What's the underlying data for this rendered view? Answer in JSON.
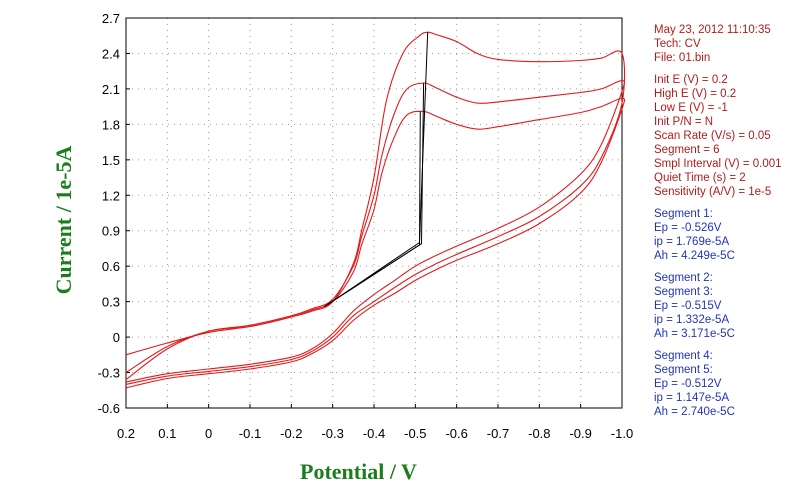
{
  "chart_data": {
    "type": "line",
    "xlabel": "Potential / V",
    "ylabel": "Current / 1e-5A",
    "xlim": [
      0.2,
      -1.0
    ],
    "ylim": [
      -0.6,
      2.7
    ],
    "x_axis_reversed": true,
    "grid": true,
    "x_ticks": [
      "0.2",
      "0.1",
      "0",
      "-0.1",
      "-0.2",
      "-0.3",
      "-0.4",
      "-0.5",
      "-0.6",
      "-0.7",
      "-0.8",
      "-0.9",
      "-1.0"
    ],
    "y_ticks": [
      "2.7",
      "2.4",
      "2.1",
      "1.8",
      "1.5",
      "1.2",
      "0.9",
      "0.6",
      "0.3",
      "0",
      "-0.3",
      "-0.6"
    ],
    "series": [
      {
        "color": "#e31a1a",
        "points": [
          [
            0.2,
            -0.4
          ],
          [
            0.1,
            -0.33
          ],
          [
            0.0,
            -0.29
          ],
          [
            -0.1,
            -0.25
          ],
          [
            -0.2,
            -0.19
          ],
          [
            -0.25,
            -0.12
          ],
          [
            -0.3,
            0.0
          ],
          [
            -0.35,
            0.18
          ],
          [
            -0.4,
            0.3
          ],
          [
            -0.45,
            0.42
          ],
          [
            -0.5,
            0.53
          ],
          [
            -0.55,
            0.62
          ],
          [
            -0.6,
            0.7
          ],
          [
            -0.7,
            0.85
          ],
          [
            -0.8,
            1.02
          ],
          [
            -0.9,
            1.28
          ],
          [
            -0.95,
            1.52
          ],
          [
            -1.0,
            1.98
          ],
          [
            -1.0,
            2.4
          ],
          [
            -0.95,
            2.36
          ],
          [
            -0.9,
            2.34
          ],
          [
            -0.8,
            2.33
          ],
          [
            -0.7,
            2.35
          ],
          [
            -0.65,
            2.4
          ],
          [
            -0.6,
            2.5
          ],
          [
            -0.55,
            2.56
          ],
          [
            -0.53,
            2.58
          ],
          [
            -0.51,
            2.55
          ],
          [
            -0.47,
            2.4
          ],
          [
            -0.43,
            2.0
          ],
          [
            -0.4,
            1.35
          ],
          [
            -0.37,
            0.9
          ],
          [
            -0.35,
            0.62
          ],
          [
            -0.3,
            0.3
          ],
          [
            -0.25,
            0.22
          ],
          [
            -0.2,
            0.17
          ],
          [
            -0.1,
            0.09
          ],
          [
            0.0,
            0.04
          ],
          [
            0.1,
            -0.05
          ],
          [
            0.2,
            -0.15
          ]
        ]
      },
      {
        "color": "#e31a1a",
        "points": [
          [
            0.2,
            -0.38
          ],
          [
            0.1,
            -0.31
          ],
          [
            0.0,
            -0.27
          ],
          [
            -0.1,
            -0.23
          ],
          [
            -0.2,
            -0.17
          ],
          [
            -0.25,
            -0.1
          ],
          [
            -0.3,
            0.03
          ],
          [
            -0.35,
            0.22
          ],
          [
            -0.4,
            0.36
          ],
          [
            -0.45,
            0.48
          ],
          [
            -0.5,
            0.6
          ],
          [
            -0.55,
            0.69
          ],
          [
            -0.6,
            0.77
          ],
          [
            -0.7,
            0.92
          ],
          [
            -0.8,
            1.1
          ],
          [
            -0.9,
            1.38
          ],
          [
            -0.95,
            1.63
          ],
          [
            -1.0,
            2.08
          ],
          [
            -1.0,
            2.17
          ],
          [
            -0.95,
            2.1
          ],
          [
            -0.9,
            2.07
          ],
          [
            -0.8,
            2.03
          ],
          [
            -0.7,
            1.99
          ],
          [
            -0.65,
            1.98
          ],
          [
            -0.6,
            2.03
          ],
          [
            -0.55,
            2.11
          ],
          [
            -0.52,
            2.15
          ],
          [
            -0.48,
            2.1
          ],
          [
            -0.45,
            1.9
          ],
          [
            -0.42,
            1.55
          ],
          [
            -0.4,
            1.2
          ],
          [
            -0.37,
            0.85
          ],
          [
            -0.35,
            0.6
          ],
          [
            -0.3,
            0.32
          ],
          [
            -0.25,
            0.24
          ],
          [
            -0.2,
            0.18
          ],
          [
            -0.1,
            0.1
          ],
          [
            0.0,
            0.05
          ],
          [
            0.1,
            -0.08
          ],
          [
            0.2,
            -0.3
          ]
        ]
      },
      {
        "color": "#e31a1a",
        "points": [
          [
            0.2,
            -0.43
          ],
          [
            0.1,
            -0.35
          ],
          [
            0.0,
            -0.31
          ],
          [
            -0.1,
            -0.27
          ],
          [
            -0.2,
            -0.21
          ],
          [
            -0.25,
            -0.14
          ],
          [
            -0.3,
            -0.03
          ],
          [
            -0.35,
            0.14
          ],
          [
            -0.4,
            0.27
          ],
          [
            -0.45,
            0.37
          ],
          [
            -0.5,
            0.48
          ],
          [
            -0.55,
            0.57
          ],
          [
            -0.6,
            0.65
          ],
          [
            -0.7,
            0.79
          ],
          [
            -0.8,
            0.96
          ],
          [
            -0.9,
            1.22
          ],
          [
            -0.95,
            1.48
          ],
          [
            -1.0,
            1.93
          ],
          [
            -1.0,
            2.02
          ],
          [
            -0.95,
            1.95
          ],
          [
            -0.9,
            1.9
          ],
          [
            -0.8,
            1.84
          ],
          [
            -0.7,
            1.78
          ],
          [
            -0.65,
            1.76
          ],
          [
            -0.6,
            1.8
          ],
          [
            -0.55,
            1.87
          ],
          [
            -0.52,
            1.91
          ],
          [
            -0.48,
            1.88
          ],
          [
            -0.45,
            1.7
          ],
          [
            -0.42,
            1.4
          ],
          [
            -0.4,
            1.08
          ],
          [
            -0.37,
            0.78
          ],
          [
            -0.35,
            0.55
          ],
          [
            -0.3,
            0.3
          ],
          [
            -0.25,
            0.23
          ],
          [
            -0.2,
            0.17
          ],
          [
            -0.1,
            0.09
          ],
          [
            0.0,
            0.05
          ],
          [
            0.1,
            -0.1
          ],
          [
            0.2,
            -0.36
          ]
        ]
      }
    ],
    "baselines": [
      {
        "color": "#000000",
        "points": [
          [
            -0.29,
            0.28
          ],
          [
            -0.51,
            0.8
          ],
          [
            -0.53,
            2.58
          ]
        ]
      },
      {
        "color": "#000000",
        "points": [
          [
            -0.285,
            0.27
          ],
          [
            -0.515,
            0.79
          ],
          [
            -0.52,
            2.15
          ]
        ]
      },
      {
        "color": "#000000",
        "points": [
          [
            -0.28,
            0.26
          ],
          [
            -0.51,
            0.78
          ],
          [
            -0.512,
            1.91
          ]
        ]
      }
    ]
  },
  "info": {
    "header": [
      "May 23, 2012    11:10:35",
      "Tech: CV",
      "File: 01.bin"
    ],
    "params": [
      "Init E (V) = 0.2",
      "High E (V) = 0.2",
      "Low E (V) = -1",
      "Init P/N = N",
      "Scan Rate (V/s) = 0.05",
      "Segment = 6",
      "Smpl Interval (V) = 0.001",
      "Quiet Time (s) = 2",
      "Sensitivity (A/V) = 1e-5"
    ],
    "seg1": [
      "Segment 1:",
      "Ep = -0.526V",
      "ip = 1.769e-5A",
      "Ah = 4.249e-5C"
    ],
    "seg23": [
      "Segment 2:",
      "Segment 3:",
      "Ep = -0.515V",
      "ip = 1.332e-5A",
      "Ah = 3.171e-5C"
    ],
    "seg45": [
      "Segment 4:",
      "Segment 5:",
      "Ep = -0.512V",
      "ip = 1.147e-5A",
      "Ah = 2.740e-5C"
    ]
  }
}
